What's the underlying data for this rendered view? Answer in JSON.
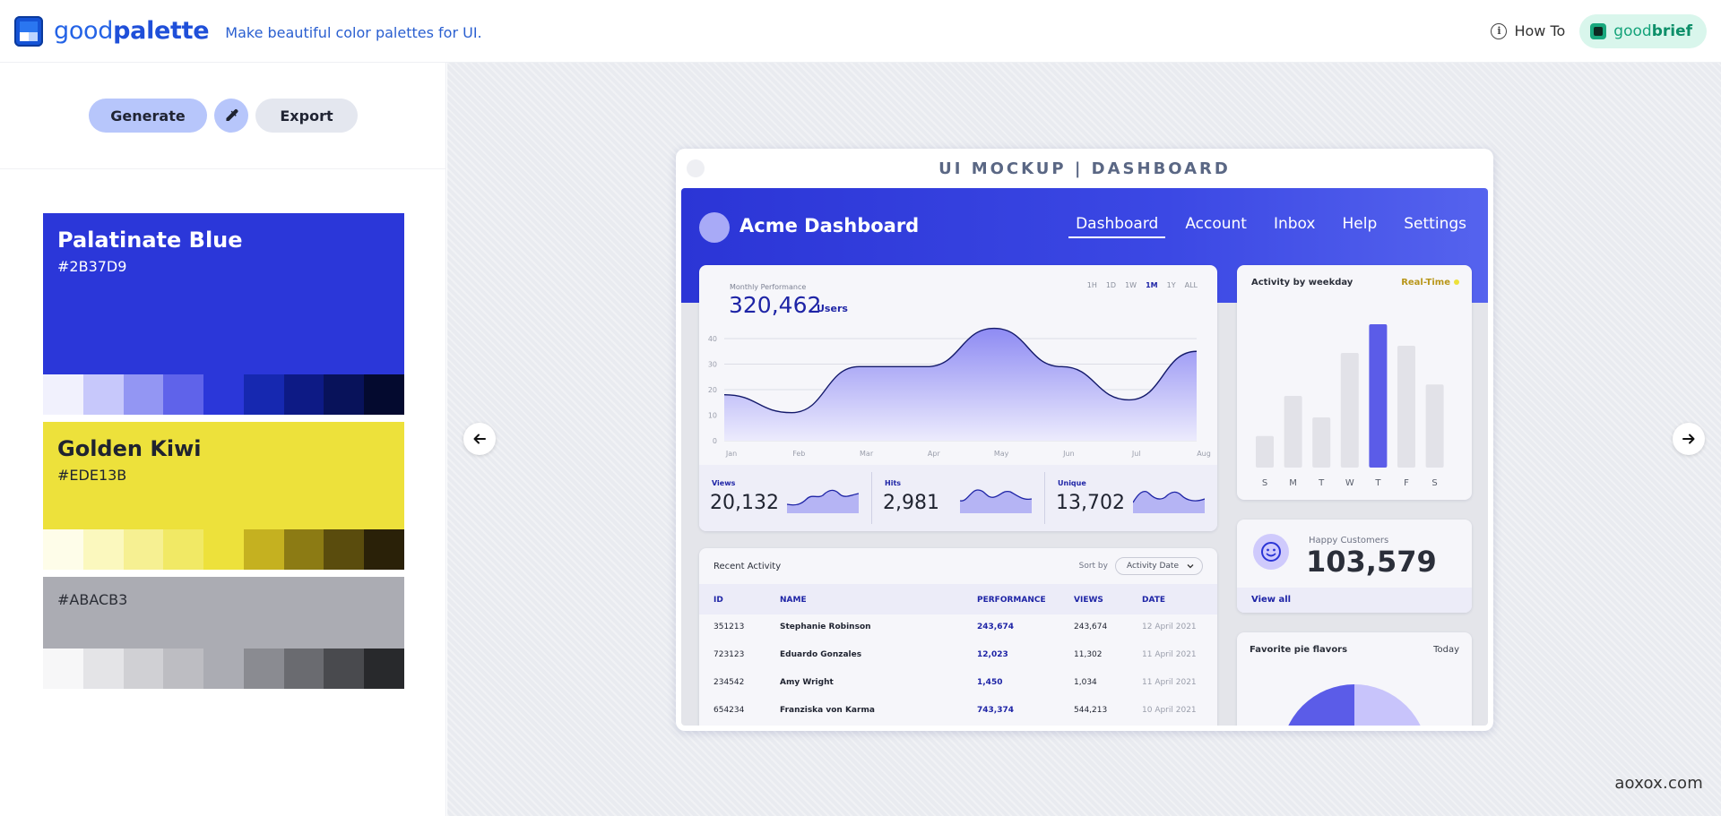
{
  "header": {
    "brand_light": "good",
    "brand_bold": "palette",
    "tagline": "Make beautiful color palettes for UI.",
    "howto_label": "How To",
    "goodbrief_light": "good",
    "goodbrief_bold": "brief"
  },
  "controls": {
    "generate_label": "Generate",
    "export_label": "Export"
  },
  "palette": [
    {
      "name": "Palatinate Blue",
      "hex": "#2B37D9",
      "text_color": "#ffffff",
      "shades": [
        "#f1f1fd",
        "#c7c8fb",
        "#9396f3",
        "#5f63ea",
        "#2b37d9",
        "#1628b0",
        "#0d1a85",
        "#08125a",
        "#040a2f"
      ]
    },
    {
      "name": "Golden Kiwi",
      "hex": "#EDE13B",
      "text_color": "#1f2330",
      "shades": [
        "#fefde9",
        "#fbf8be",
        "#f6f092",
        "#f1e965",
        "#ede13b",
        "#c5b120",
        "#8c7b14",
        "#5a4c0d",
        "#2a2108"
      ]
    },
    {
      "name": "",
      "hex": "#ABACB3",
      "text_color": "#2a2d35",
      "shades": [
        "#f7f7f8",
        "#e4e4e7",
        "#d0d0d4",
        "#bdbdc2",
        "#abacb3",
        "#8a8b91",
        "#6a6b70",
        "#494a4e",
        "#28292c"
      ]
    }
  ],
  "mockup": {
    "title": "UI MOCKUP | DASHBOARD",
    "app_title": "Acme Dashboard",
    "nav": [
      "Dashboard",
      "Account",
      "Inbox",
      "Help",
      "Settings"
    ],
    "performance": {
      "label": "Monthly Performance",
      "value": "320,462",
      "unit": "Users",
      "ranges": [
        "1H",
        "1D",
        "1W",
        "1M",
        "1Y",
        "ALL"
      ],
      "active_range": "1M"
    },
    "minis": [
      {
        "label": "Views",
        "value": "20,132"
      },
      {
        "label": "Hits",
        "value": "2,981"
      },
      {
        "label": "Unique",
        "value": "13,702"
      }
    ],
    "weekday": {
      "title": "Activity by weekday",
      "realtime": "Real-Time",
      "days": [
        "S",
        "M",
        "T",
        "W",
        "T",
        "F",
        "S"
      ],
      "values": [
        22,
        50,
        35,
        80,
        100,
        85,
        58
      ],
      "highlight_index": 4
    },
    "customers": {
      "label": "Happy Customers",
      "value": "103,579",
      "link": "View all"
    },
    "pie": {
      "title": "Favorite pie flavors",
      "period": "Today"
    },
    "activity": {
      "title": "Recent Activity",
      "sort_label": "Sort by",
      "sort_value": "Activity Date",
      "columns": [
        "ID",
        "NAME",
        "PERFORMANCE",
        "VIEWS",
        "DATE"
      ],
      "rows": [
        {
          "id": "351213",
          "name": "Stephanie Robinson",
          "perf": "243,674",
          "views": "243,674",
          "date": "12 April 2021"
        },
        {
          "id": "723123",
          "name": "Eduardo Gonzales",
          "perf": "12,023",
          "views": "11,302",
          "date": "11 April 2021"
        },
        {
          "id": "234542",
          "name": "Amy Wright",
          "perf": "1,450",
          "views": "1,034",
          "date": "11 April 2021"
        },
        {
          "id": "654234",
          "name": "Franziska von Karma",
          "perf": "743,374",
          "views": "544,213",
          "date": "10 April 2021"
        }
      ]
    }
  },
  "chart_data": {
    "type": "area",
    "categories": [
      "Jan",
      "Feb",
      "Mar",
      "Apr",
      "May",
      "Jun",
      "Jul",
      "Aug"
    ],
    "values": [
      18,
      11,
      29,
      29,
      44,
      29,
      16,
      35
    ],
    "ylim": [
      0,
      40
    ],
    "yticks": [
      0,
      10,
      20,
      30,
      40
    ],
    "grid": true
  },
  "watermark": "aoxox.com"
}
